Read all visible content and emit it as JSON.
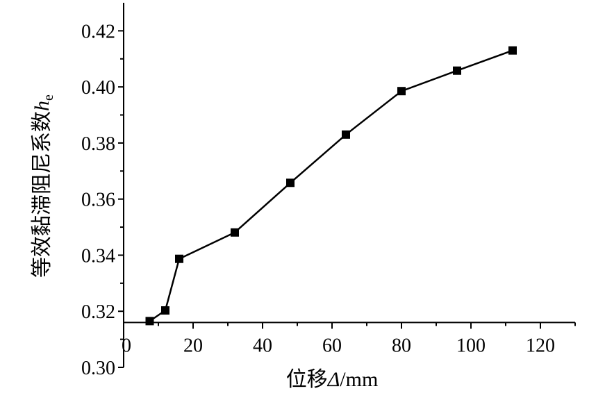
{
  "chart_data": {
    "type": "line",
    "title": "",
    "xlabel": "位移",
    "xlabel_symbol": "Δ",
    "xlabel_unit": "/mm",
    "ylabel": "等效黏滞阻尼系数",
    "ylabel_symbol": "h",
    "ylabel_subscript": "e",
    "xlim": [
      0,
      130
    ],
    "ylim": [
      0.3,
      0.43
    ],
    "x_axis_crosses_y_at": 0.316,
    "x_ticks": [
      0,
      20,
      40,
      60,
      80,
      100,
      120
    ],
    "y_ticks": [
      0.3,
      0.32,
      0.34,
      0.36,
      0.38,
      0.4,
      0.42
    ],
    "x_tick_labels": [
      "0",
      "20",
      "40",
      "60",
      "80",
      "100",
      "120"
    ],
    "y_tick_labels": [
      "0.30",
      "0.32",
      "0.34",
      "0.36",
      "0.38",
      "0.40",
      "0.42"
    ],
    "grid": false,
    "legend": "none",
    "marker": "square",
    "color": "#000000",
    "series": [
      {
        "x": [
          7.5,
          12,
          16,
          32,
          48,
          64,
          80,
          96,
          112
        ],
        "y": [
          0.3165,
          0.3203,
          0.3387,
          0.3481,
          0.3658,
          0.383,
          0.3985,
          0.4058,
          0.413
        ]
      }
    ]
  }
}
